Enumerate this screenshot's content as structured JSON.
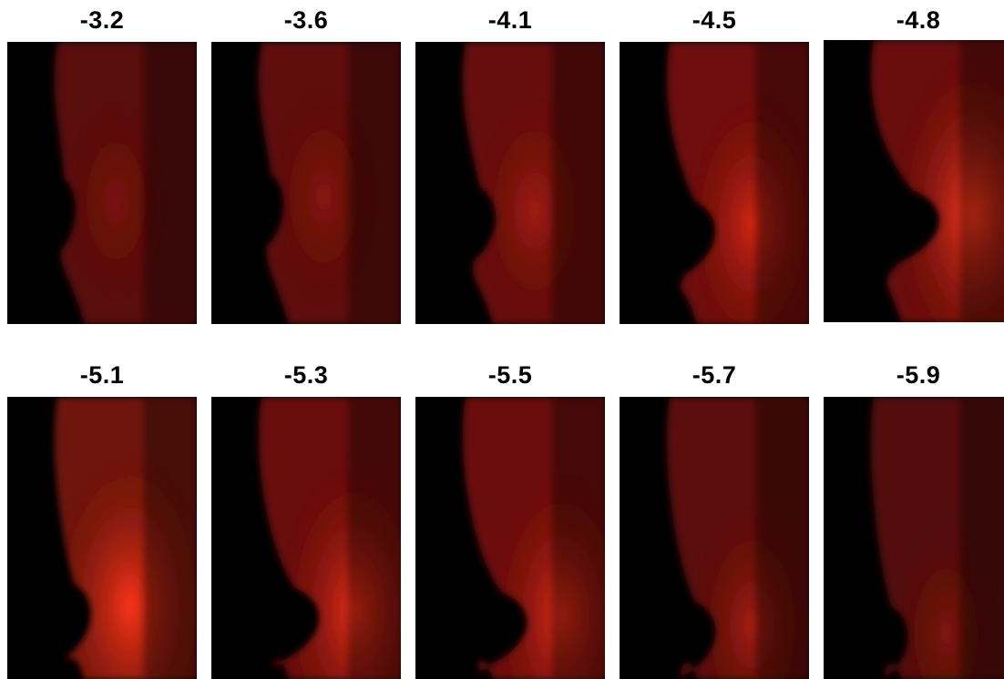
{
  "rows": [
    {
      "panels": [
        {
          "label": "-3.2",
          "intensity": 0.35,
          "tissue_color": "#5a0d08",
          "glow_color": "#8a160c"
        },
        {
          "label": "-3.6",
          "intensity": 0.4,
          "tissue_color": "#5e0e08",
          "glow_color": "#95190d"
        },
        {
          "label": "-4.1",
          "intensity": 0.5,
          "tissue_color": "#660f09",
          "glow_color": "#b0200f"
        },
        {
          "label": "-4.5",
          "intensity": 0.7,
          "tissue_color": "#6e1109",
          "glow_color": "#e02a14"
        },
        {
          "label": "-4.8",
          "intensity": 0.95,
          "tissue_color": "#6a1109",
          "glow_color": "#ff3a1c"
        }
      ]
    },
    {
      "panels": [
        {
          "label": "-5.1",
          "intensity": 0.95,
          "tissue_color": "#6e120a",
          "glow_color": "#ff3518"
        },
        {
          "label": "-5.3",
          "intensity": 0.85,
          "tissue_color": "#6a1109",
          "glow_color": "#f03018"
        },
        {
          "label": "-5.5",
          "intensity": 0.8,
          "tissue_color": "#6c1109",
          "glow_color": "#ea2e16"
        },
        {
          "label": "-5.7",
          "intensity": 0.55,
          "tissue_color": "#5c0e08",
          "glow_color": "#b8220f"
        },
        {
          "label": "-5.9",
          "intensity": 0.4,
          "tissue_color": "#520c07",
          "glow_color": "#8e180c"
        }
      ]
    }
  ]
}
